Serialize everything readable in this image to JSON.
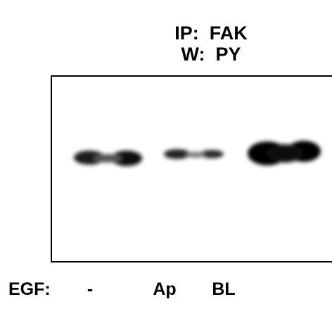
{
  "header": {
    "line1": "IP:  FAK",
    "line2": "W:  PY"
  },
  "lanes": {
    "label": "EGF:",
    "items": [
      "-",
      "Ap",
      "BL"
    ]
  }
}
